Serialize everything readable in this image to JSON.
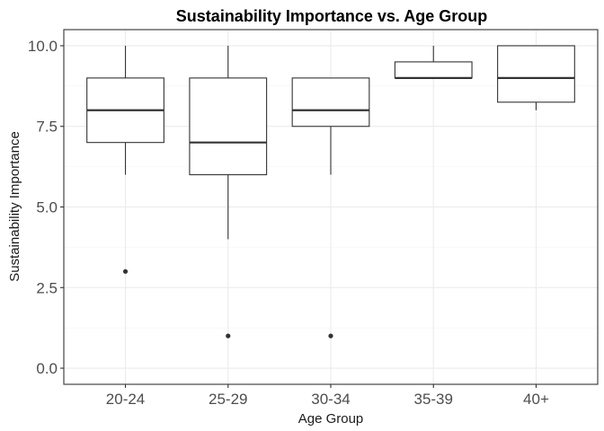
{
  "chart_data": {
    "type": "boxplot",
    "title": "Sustainability Importance vs. Age Group",
    "xlabel": "Age Group",
    "ylabel": "Sustainability Importance",
    "categories": [
      "20-24",
      "25-29",
      "30-34",
      "35-39",
      "40+"
    ],
    "ylim": [
      -0.5,
      10.5
    ],
    "yticks": [
      0.0,
      2.5,
      5.0,
      7.5,
      10.0
    ],
    "ytick_labels": [
      "0.0",
      "2.5",
      "5.0",
      "7.5",
      "10.0"
    ],
    "grid": true,
    "boxes": [
      {
        "category": "20-24",
        "whisker_low": 6,
        "q1": 7,
        "median": 8,
        "q3": 9,
        "whisker_high": 10,
        "outliers": [
          3
        ]
      },
      {
        "category": "25-29",
        "whisker_low": 4,
        "q1": 6,
        "median": 7,
        "q3": 9,
        "whisker_high": 10,
        "outliers": [
          1
        ]
      },
      {
        "category": "30-34",
        "whisker_low": 6,
        "q1": 7.5,
        "median": 8,
        "q3": 9,
        "whisker_high": 9,
        "outliers": [
          1
        ]
      },
      {
        "category": "35-39",
        "whisker_low": 9,
        "q1": 9,
        "median": 9,
        "q3": 9.5,
        "whisker_high": 10,
        "outliers": []
      },
      {
        "category": "40+",
        "whisker_low": 8,
        "q1": 8.25,
        "median": 9,
        "q3": 10,
        "whisker_high": 10,
        "outliers": []
      }
    ],
    "colors": {
      "box_fill": "#ffffff",
      "box_stroke": "#333333",
      "grid": "#ebebeb"
    }
  }
}
